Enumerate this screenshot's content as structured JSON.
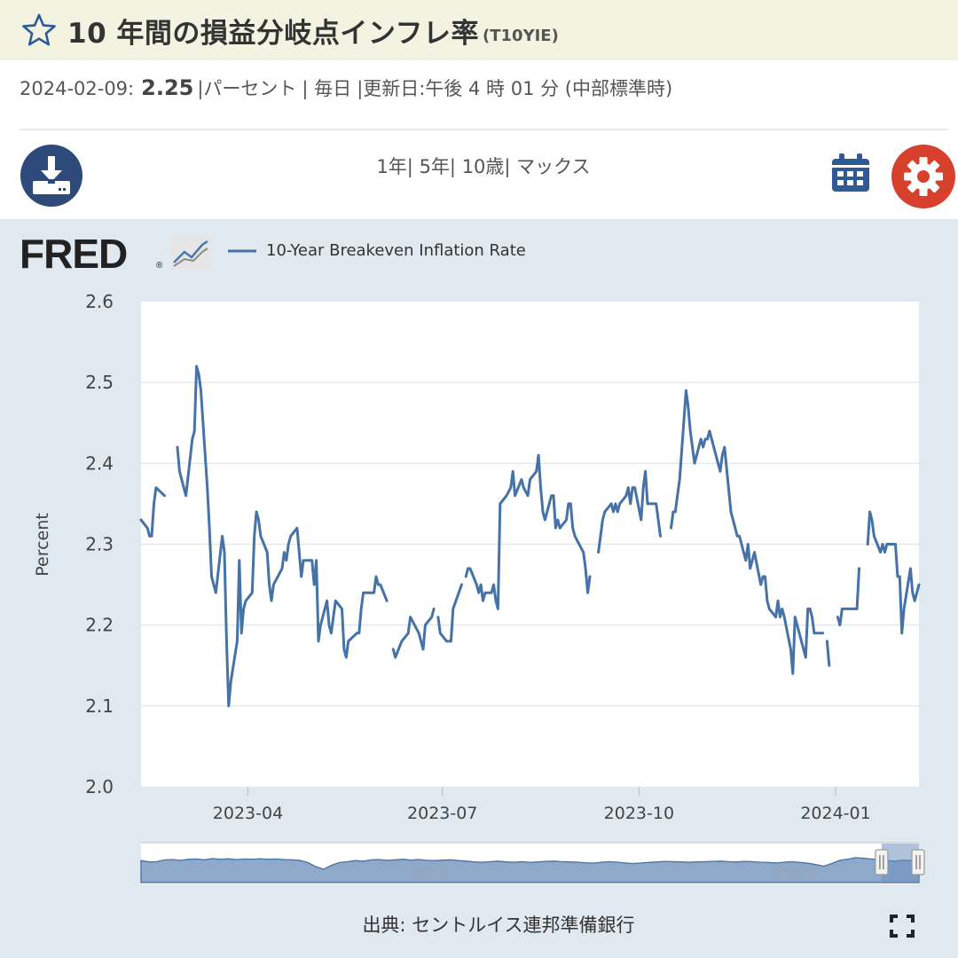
{
  "header": {
    "title": "10 年間の損益分岐点インフレ率",
    "series_id": "(T10YIE)"
  },
  "info": {
    "date": "2024-02-09:",
    "value": "2.25",
    "unit": "|パーセント",
    "frequency": "| 毎日",
    "updated": "|更新日:午後 4 時 01 分 (中部標準時)"
  },
  "range_links": [
    "1年|",
    "5年|",
    "10歳|",
    "マックス"
  ],
  "icons": {
    "favorite": "star-icon",
    "download": "download-icon",
    "calendar": "calendar-icon",
    "settings": "gear-icon",
    "fullscreen": "fullscreen-icon",
    "logo_graph": "fred-graph-icon"
  },
  "brand": {
    "logo_text": "FRED",
    "logo_mark": "®"
  },
  "colors": {
    "series": "#4572a7",
    "download_button": "#2e4a7a",
    "settings_button": "#d8402e",
    "title_bar": "#f3f3e1",
    "graph_panel": "#e1e9f0"
  },
  "chart_data": {
    "type": "line",
    "title": "",
    "xlabel": "",
    "ylabel": "Percent",
    "x_ticks": [
      "2023-04",
      "2023-07",
      "2023-10",
      "2024-01"
    ],
    "y_ticks": [
      2.0,
      2.1,
      2.2,
      2.3,
      2.4,
      2.5,
      2.6
    ],
    "ylim": [
      2.0,
      2.6
    ],
    "xlim": [
      "2023-02-10",
      "2024-02-09"
    ],
    "grid": "horizontal",
    "legend": "top-left",
    "series": [
      {
        "name": "10-Year Breakeven Inflation Rate",
        "points": [
          [
            "2023-02-10",
            2.33
          ],
          [
            "2023-02-13",
            2.32
          ],
          [
            "2023-02-14",
            2.31
          ],
          [
            "2023-02-15",
            2.31
          ],
          [
            "2023-02-16",
            2.35
          ],
          [
            "2023-02-17",
            2.37
          ],
          [
            "2023-02-21",
            2.36
          ],
          null,
          [
            "2023-02-27",
            2.42
          ],
          [
            "2023-02-28",
            2.39
          ],
          [
            "2023-03-01",
            2.38
          ],
          [
            "2023-03-03",
            2.36
          ],
          [
            "2023-03-06",
            2.43
          ],
          [
            "2023-03-07",
            2.44
          ],
          [
            "2023-03-08",
            2.52
          ],
          [
            "2023-03-09",
            2.51
          ],
          [
            "2023-03-10",
            2.49
          ],
          [
            "2023-03-13",
            2.37
          ],
          [
            "2023-03-14",
            2.32
          ],
          [
            "2023-03-15",
            2.26
          ],
          [
            "2023-03-17",
            2.24
          ],
          [
            "2023-03-20",
            2.31
          ],
          [
            "2023-03-21",
            2.29
          ],
          [
            "2023-03-22",
            2.18
          ],
          [
            "2023-03-23",
            2.1
          ],
          [
            "2023-03-24",
            2.13
          ],
          [
            "2023-03-27",
            2.18
          ],
          [
            "2023-03-28",
            2.28
          ],
          [
            "2023-03-29",
            2.19
          ],
          [
            "2023-03-30",
            2.22
          ],
          [
            "2023-03-31",
            2.23
          ],
          [
            "2023-04-03",
            2.24
          ],
          [
            "2023-04-04",
            2.31
          ],
          [
            "2023-04-05",
            2.34
          ],
          [
            "2023-04-06",
            2.33
          ],
          [
            "2023-04-07",
            2.31
          ],
          [
            "2023-04-10",
            2.29
          ],
          [
            "2023-04-11",
            2.25
          ],
          [
            "2023-04-12",
            2.23
          ],
          [
            "2023-04-13",
            2.25
          ],
          [
            "2023-04-17",
            2.27
          ],
          [
            "2023-04-18",
            2.29
          ],
          [
            "2023-04-19",
            2.28
          ],
          [
            "2023-04-20",
            2.3
          ],
          [
            "2023-04-21",
            2.31
          ],
          [
            "2023-04-24",
            2.32
          ],
          [
            "2023-04-25",
            2.29
          ],
          [
            "2023-04-26",
            2.26
          ],
          [
            "2023-04-27",
            2.28
          ],
          [
            "2023-04-28",
            2.28
          ],
          [
            "2023-05-01",
            2.28
          ],
          [
            "2023-05-02",
            2.25
          ],
          [
            "2023-05-03",
            2.28
          ],
          [
            "2023-05-04",
            2.18
          ],
          [
            "2023-05-05",
            2.2
          ],
          [
            "2023-05-08",
            2.23
          ],
          [
            "2023-05-09",
            2.2
          ],
          [
            "2023-05-10",
            2.19
          ],
          [
            "2023-05-11",
            2.21
          ],
          [
            "2023-05-12",
            2.23
          ],
          [
            "2023-05-15",
            2.22
          ],
          [
            "2023-05-16",
            2.17
          ],
          [
            "2023-05-17",
            2.16
          ],
          [
            "2023-05-18",
            2.18
          ],
          [
            "2023-05-22",
            2.19
          ],
          [
            "2023-05-23",
            2.19
          ],
          [
            "2023-05-24",
            2.22
          ],
          [
            "2023-05-25",
            2.24
          ],
          [
            "2023-05-26",
            2.24
          ],
          [
            "2023-05-30",
            2.24
          ],
          [
            "2023-05-31",
            2.26
          ],
          [
            "2023-06-01",
            2.25
          ],
          [
            "2023-06-02",
            2.25
          ],
          [
            "2023-06-05",
            2.23
          ],
          null,
          [
            "2023-06-08",
            2.17
          ],
          [
            "2023-06-09",
            2.16
          ],
          [
            "2023-06-12",
            2.18
          ],
          [
            "2023-06-15",
            2.19
          ],
          [
            "2023-06-16",
            2.21
          ],
          [
            "2023-06-20",
            2.19
          ],
          [
            "2023-06-22",
            2.17
          ],
          [
            "2023-06-23",
            2.2
          ],
          [
            "2023-06-26",
            2.21
          ],
          [
            "2023-06-27",
            2.22
          ],
          null,
          [
            "2023-06-29",
            2.21
          ],
          [
            "2023-06-30",
            2.19
          ],
          [
            "2023-07-03",
            2.18
          ],
          [
            "2023-07-05",
            2.18
          ],
          [
            "2023-07-06",
            2.22
          ],
          [
            "2023-07-10",
            2.25
          ],
          null,
          [
            "2023-07-12",
            2.26
          ],
          [
            "2023-07-13",
            2.27
          ],
          [
            "2023-07-14",
            2.27
          ],
          [
            "2023-07-17",
            2.25
          ],
          [
            "2023-07-18",
            2.24
          ],
          [
            "2023-07-19",
            2.25
          ],
          [
            "2023-07-20",
            2.23
          ],
          [
            "2023-07-21",
            2.24
          ],
          [
            "2023-07-24",
            2.24
          ],
          [
            "2023-07-25",
            2.25
          ],
          [
            "2023-07-26",
            2.23
          ],
          [
            "2023-07-27",
            2.22
          ],
          [
            "2023-07-28",
            2.35
          ],
          [
            "2023-07-31",
            2.36
          ],
          [
            "2023-08-02",
            2.37
          ],
          [
            "2023-08-03",
            2.39
          ],
          [
            "2023-08-04",
            2.36
          ],
          [
            "2023-08-07",
            2.38
          ],
          [
            "2023-08-08",
            2.37
          ],
          [
            "2023-08-10",
            2.36
          ],
          [
            "2023-08-11",
            2.38
          ],
          [
            "2023-08-14",
            2.39
          ],
          [
            "2023-08-15",
            2.41
          ],
          [
            "2023-08-16",
            2.37
          ],
          [
            "2023-08-17",
            2.34
          ],
          [
            "2023-08-18",
            2.33
          ],
          [
            "2023-08-21",
            2.36
          ],
          [
            "2023-08-22",
            2.36
          ],
          [
            "2023-08-23",
            2.32
          ],
          [
            "2023-08-24",
            2.33
          ],
          [
            "2023-08-25",
            2.32
          ],
          [
            "2023-08-28",
            2.33
          ],
          [
            "2023-08-29",
            2.35
          ],
          [
            "2023-08-30",
            2.35
          ],
          [
            "2023-08-31",
            2.32
          ],
          [
            "2023-09-01",
            2.31
          ],
          [
            "2023-09-05",
            2.29
          ],
          [
            "2023-09-06",
            2.27
          ],
          [
            "2023-09-07",
            2.24
          ],
          [
            "2023-09-08",
            2.26
          ],
          null,
          [
            "2023-09-12",
            2.29
          ],
          [
            "2023-09-13",
            2.31
          ],
          [
            "2023-09-14",
            2.33
          ],
          [
            "2023-09-15",
            2.34
          ],
          [
            "2023-09-18",
            2.35
          ],
          [
            "2023-09-19",
            2.34
          ],
          [
            "2023-09-20",
            2.35
          ],
          [
            "2023-09-21",
            2.34
          ],
          [
            "2023-09-22",
            2.35
          ],
          [
            "2023-09-25",
            2.36
          ],
          [
            "2023-09-26",
            2.37
          ],
          [
            "2023-09-27",
            2.35
          ],
          [
            "2023-09-28",
            2.37
          ],
          [
            "2023-09-29",
            2.37
          ],
          [
            "2023-10-02",
            2.33
          ],
          [
            "2023-10-03",
            2.37
          ],
          [
            "2023-10-04",
            2.39
          ],
          [
            "2023-10-05",
            2.35
          ],
          [
            "2023-10-06",
            2.35
          ],
          [
            "2023-10-09",
            2.35
          ],
          [
            "2023-10-10",
            2.33
          ],
          [
            "2023-10-11",
            2.31
          ],
          null,
          [
            "2023-10-16",
            2.32
          ],
          [
            "2023-10-17",
            2.34
          ],
          [
            "2023-10-18",
            2.34
          ],
          [
            "2023-10-19",
            2.36
          ],
          [
            "2023-10-20",
            2.38
          ],
          [
            "2023-10-23",
            2.49
          ],
          [
            "2023-10-24",
            2.47
          ],
          [
            "2023-10-25",
            2.44
          ],
          [
            "2023-10-26",
            2.42
          ],
          [
            "2023-10-27",
            2.4
          ],
          [
            "2023-10-30",
            2.43
          ],
          [
            "2023-10-31",
            2.42
          ],
          [
            "2023-11-01",
            2.43
          ],
          [
            "2023-11-02",
            2.43
          ],
          [
            "2023-11-03",
            2.44
          ],
          [
            "2023-11-06",
            2.41
          ],
          [
            "2023-11-07",
            2.4
          ],
          [
            "2023-11-08",
            2.39
          ],
          [
            "2023-11-09",
            2.41
          ],
          [
            "2023-11-10",
            2.42
          ],
          [
            "2023-11-13",
            2.34
          ],
          [
            "2023-11-14",
            2.33
          ],
          [
            "2023-11-15",
            2.32
          ],
          [
            "2023-11-16",
            2.31
          ],
          [
            "2023-11-17",
            2.31
          ],
          [
            "2023-11-20",
            2.28
          ],
          [
            "2023-11-21",
            2.3
          ],
          [
            "2023-11-22",
            2.27
          ],
          [
            "2023-11-24",
            2.29
          ],
          [
            "2023-11-27",
            2.25
          ],
          [
            "2023-11-28",
            2.26
          ],
          [
            "2023-11-29",
            2.26
          ],
          [
            "2023-11-30",
            2.23
          ],
          [
            "2023-12-01",
            2.22
          ],
          [
            "2023-12-04",
            2.21
          ],
          [
            "2023-12-05",
            2.23
          ],
          [
            "2023-12-06",
            2.21
          ],
          [
            "2023-12-07",
            2.22
          ],
          [
            "2023-12-08",
            2.21
          ],
          [
            "2023-12-11",
            2.17
          ],
          [
            "2023-12-12",
            2.14
          ],
          [
            "2023-12-13",
            2.21
          ],
          [
            "2023-12-14",
            2.2
          ],
          [
            "2023-12-15",
            2.19
          ],
          [
            "2023-12-18",
            2.16
          ],
          [
            "2023-12-19",
            2.22
          ],
          [
            "2023-12-20",
            2.22
          ],
          [
            "2023-12-21",
            2.21
          ],
          [
            "2023-12-22",
            2.19
          ],
          [
            "2023-12-26",
            2.19
          ],
          null,
          [
            "2023-12-28",
            2.18
          ],
          [
            "2023-12-29",
            2.15
          ],
          null,
          [
            "2024-01-02",
            2.16
          ],
          null,
          [
            "2024-01-02",
            2.21
          ],
          [
            "2024-01-03",
            2.2
          ],
          [
            "2024-01-04",
            2.22
          ],
          [
            "2024-01-05",
            2.22
          ],
          [
            "2024-01-09",
            2.22
          ],
          [
            "2024-01-10",
            2.22
          ],
          [
            "2024-01-11",
            2.22
          ],
          [
            "2024-01-12",
            2.27
          ],
          null,
          [
            "2024-01-16",
            2.3
          ],
          [
            "2024-01-17",
            2.34
          ],
          [
            "2024-01-18",
            2.33
          ],
          [
            "2024-01-19",
            2.31
          ],
          [
            "2024-01-22",
            2.29
          ],
          [
            "2024-01-23",
            2.3
          ],
          [
            "2024-01-24",
            2.29
          ],
          [
            "2024-01-25",
            2.3
          ],
          [
            "2024-01-26",
            2.3
          ],
          [
            "2024-01-29",
            2.3
          ],
          [
            "2024-01-30",
            2.26
          ],
          [
            "2024-01-31",
            2.26
          ],
          [
            "2024-02-01",
            2.19
          ],
          [
            "2024-02-02",
            2.22
          ],
          [
            "2024-02-05",
            2.27
          ],
          [
            "2024-02-06",
            2.24
          ],
          [
            "2024-02-07",
            2.23
          ],
          [
            "2024-02-08",
            2.24
          ],
          [
            "2024-02-09",
            2.25
          ]
        ]
      }
    ],
    "navigator": {
      "tick_labels": [
        "2010",
        "2020"
      ],
      "shape": [
        0.7,
        0.6,
        0.62,
        0.75,
        0.78,
        0.72,
        0.8,
        0.82,
        0.76,
        0.85,
        0.8,
        0.83,
        0.78,
        0.82,
        0.8,
        0.84,
        0.8,
        0.82,
        0.78,
        0.76,
        0.72,
        0.55,
        0.25,
        0.05,
        0.35,
        0.55,
        0.62,
        0.7,
        0.66,
        0.75,
        0.78,
        0.72,
        0.76,
        0.8,
        0.74,
        0.78,
        0.72,
        0.7,
        0.74,
        0.76,
        0.7,
        0.66,
        0.6,
        0.58,
        0.62,
        0.66,
        0.6,
        0.58,
        0.62,
        0.56,
        0.6,
        0.64,
        0.66,
        0.62,
        0.6,
        0.58,
        0.54,
        0.5,
        0.58,
        0.62,
        0.58,
        0.52,
        0.48,
        0.52,
        0.56,
        0.6,
        0.64,
        0.62,
        0.6,
        0.58,
        0.6,
        0.62,
        0.64,
        0.66,
        0.62,
        0.6,
        0.64,
        0.62,
        0.58,
        0.56,
        0.52,
        0.58,
        0.62,
        0.56,
        0.5,
        0.4,
        0.28,
        0.48,
        0.72,
        0.8,
        0.92,
        0.88,
        0.82,
        0.76,
        0.7,
        0.66,
        0.74,
        0.7,
        0.64
      ],
      "selected_range": [
        0.952,
        1.0
      ]
    }
  },
  "footer": {
    "source": "出典: セントルイス連邦準備銀行"
  }
}
